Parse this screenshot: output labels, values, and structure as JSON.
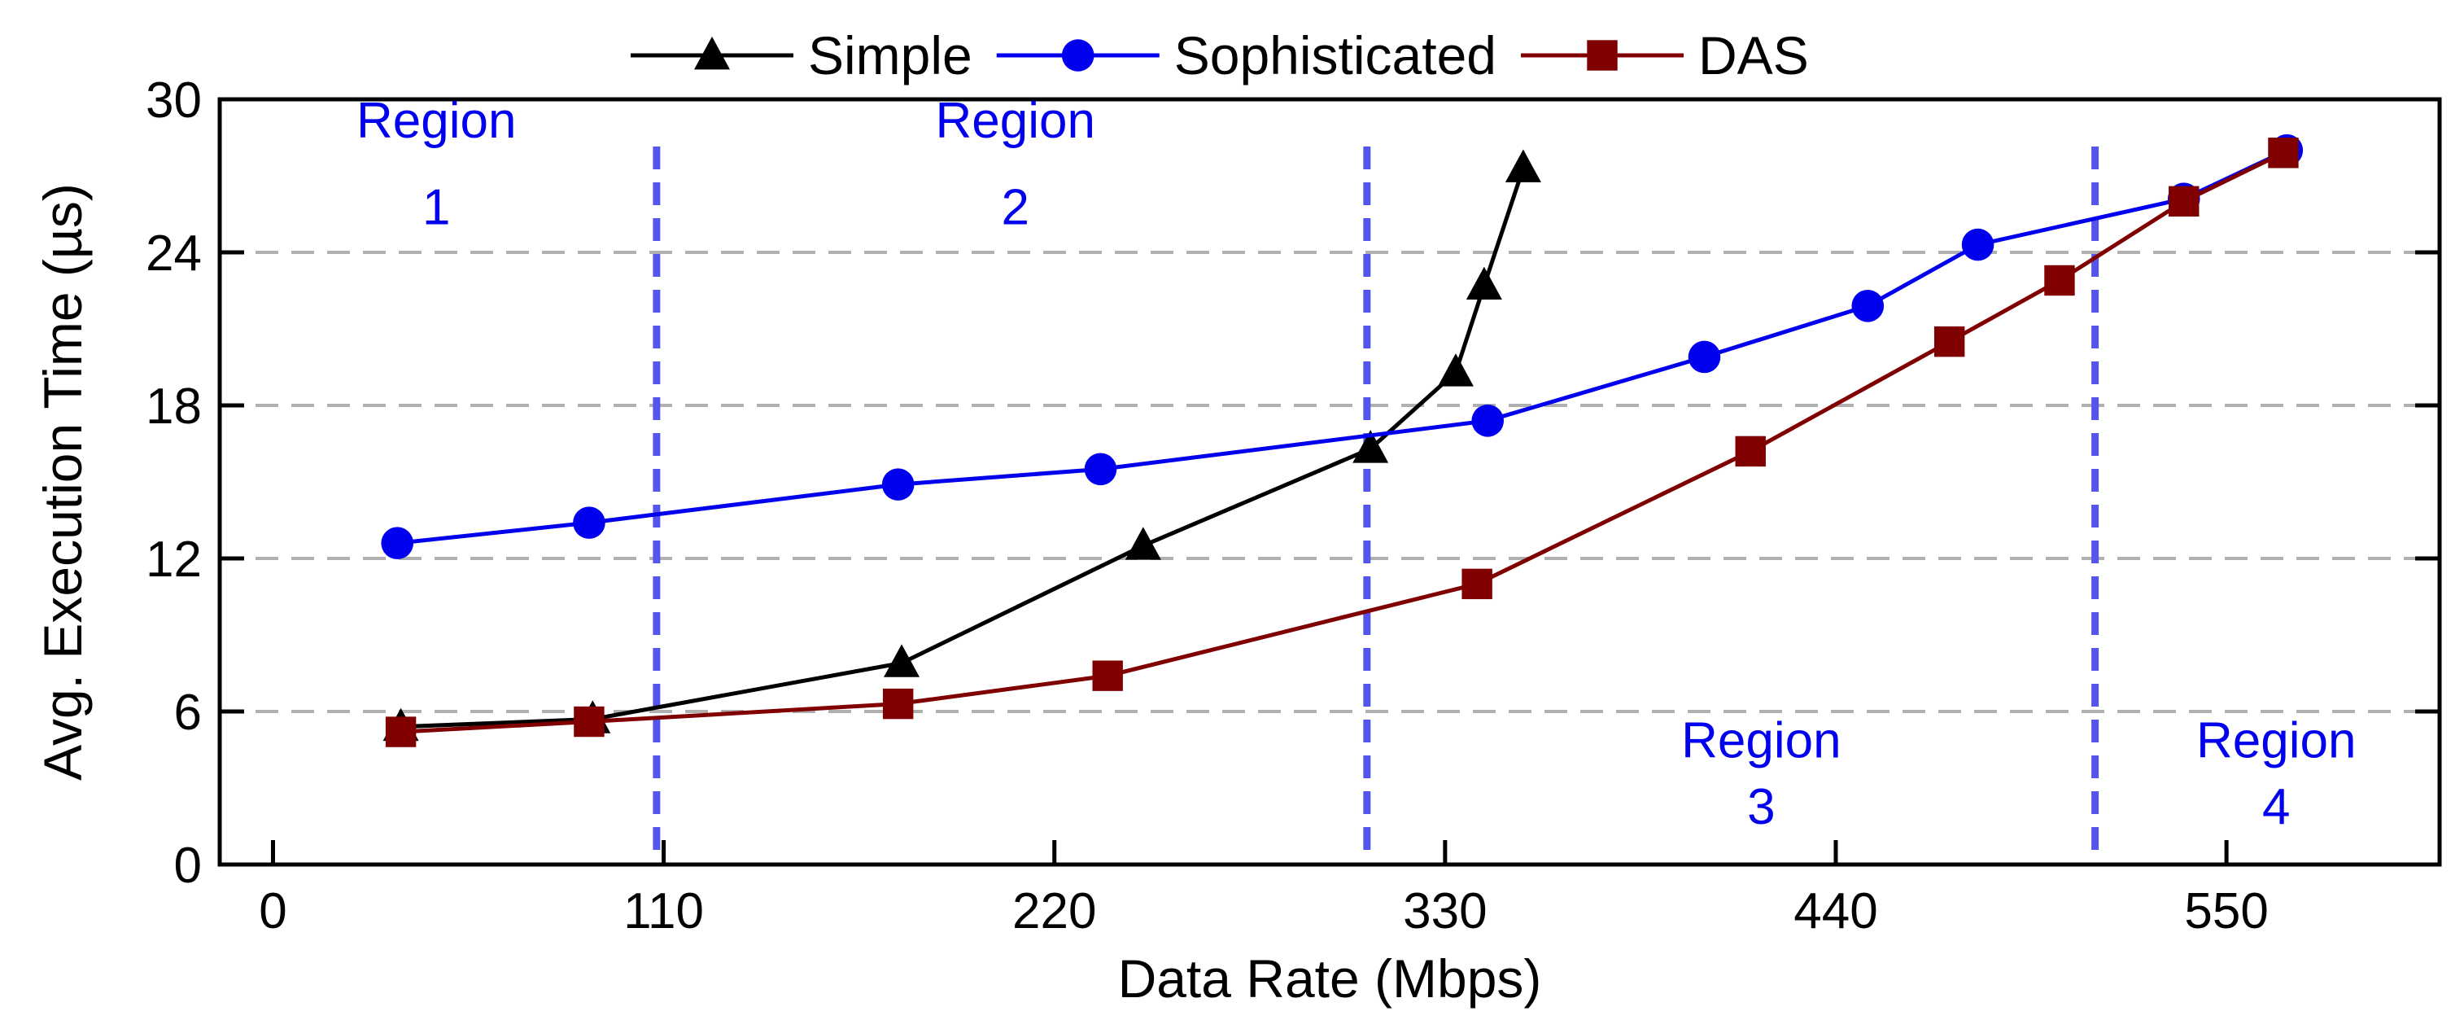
{
  "chart_data": {
    "type": "line",
    "title": "",
    "xlabel": "Data Rate (Mbps)",
    "ylabel": "Avg. Execution Time (µs)",
    "xlim": [
      -15,
      610
    ],
    "ylim": [
      0,
      30
    ],
    "xticks": [
      0,
      110,
      220,
      330,
      440,
      550
    ],
    "yticks": [
      0,
      6,
      12,
      18,
      24,
      30
    ],
    "grid": "horizontal-dashed",
    "legend_position": "top-center",
    "series": [
      {
        "name": "Simple",
        "color": "#000000",
        "marker": "triangle",
        "x": [
          36,
          90,
          177,
          245,
          309,
          333,
          341,
          352
        ],
        "y": [
          5.4,
          5.7,
          7.9,
          12.5,
          16.3,
          19.3,
          22.7,
          27.3
        ]
      },
      {
        "name": "Sophisticated",
        "color": "#0000ee",
        "marker": "circle",
        "x": [
          35,
          89,
          176,
          233,
          342,
          403,
          449,
          480,
          538,
          567
        ],
        "y": [
          12.6,
          13.4,
          14.9,
          15.5,
          17.4,
          19.9,
          21.9,
          24.3,
          26.1,
          28.0
        ]
      },
      {
        "name": "DAS",
        "color": "#800000",
        "marker": "square",
        "x": [
          36,
          89,
          176,
          235,
          339,
          416,
          472,
          503,
          538,
          566
        ],
        "y": [
          5.2,
          5.6,
          6.3,
          7.4,
          11.0,
          16.2,
          20.5,
          22.9,
          26.0,
          27.9
        ]
      }
    ],
    "region_dividers": {
      "x": [
        108,
        308,
        513
      ],
      "color": "#5555ee"
    },
    "annotations": [
      {
        "text_line1": "Region",
        "text_line2": "1",
        "x": 46,
        "y1": 28.5,
        "y2": 25.1
      },
      {
        "text_line1": "Region",
        "text_line2": "2",
        "x": 209,
        "y1": 28.5,
        "y2": 25.1
      },
      {
        "text_line1": "Region",
        "text_line2": "3",
        "x": 419,
        "y1": 4.2,
        "y2": 1.6
      },
      {
        "text_line1": "Region",
        "text_line2": "4",
        "x": 564,
        "y1": 4.2,
        "y2": 1.6
      }
    ],
    "annotation_color": "#0000ee"
  }
}
